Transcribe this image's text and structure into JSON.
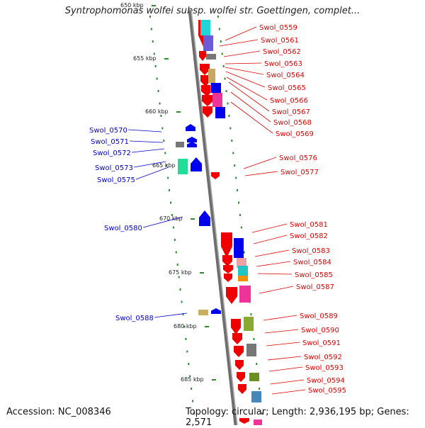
{
  "title": "Syntrophomonas wolfei subsp. wolfei str. Goettingen, complet...",
  "footer": {
    "accession": "Accession: NC_008346",
    "topology": "Topology: circular; Length: 2,936,195 bp; Genes: 2,571"
  },
  "colors": {
    "forward_label": "#dd0000",
    "reverse_label": "#0000cc",
    "ruler_green": "#2e8b2e",
    "backbone": "#7a7a7a"
  },
  "kbp_labels": [
    "650 kbp",
    "655 kbp",
    "660 kbp",
    "665 kbp",
    "670 kbp",
    "675 kbp",
    "680 kbp",
    "685 kbp"
  ],
  "forward_genes": [
    "Swol_0559",
    "Swol_0561",
    "Swol_0562",
    "Swol_0563",
    "Swol_0564",
    "Swol_0565",
    "Swol_0566",
    "Swol_0567",
    "Swol_0568",
    "Swol_0569",
    "Swol_0576",
    "Swol_0577",
    "Swol_0581",
    "Swol_0582",
    "Swol_0583",
    "Swol_0584",
    "Swol_0585",
    "Swol_0587",
    "Swol_0589",
    "Swol_0590",
    "Swol_0591",
    "Swol_0592",
    "Swol_0593",
    "Swol_0594",
    "Swol_0595"
  ],
  "reverse_genes": [
    "Swol_0570",
    "Swol_0571",
    "Swol_0572",
    "Swol_0573",
    "Swol_0575",
    "Swol_0580",
    "Swol_0588"
  ]
}
